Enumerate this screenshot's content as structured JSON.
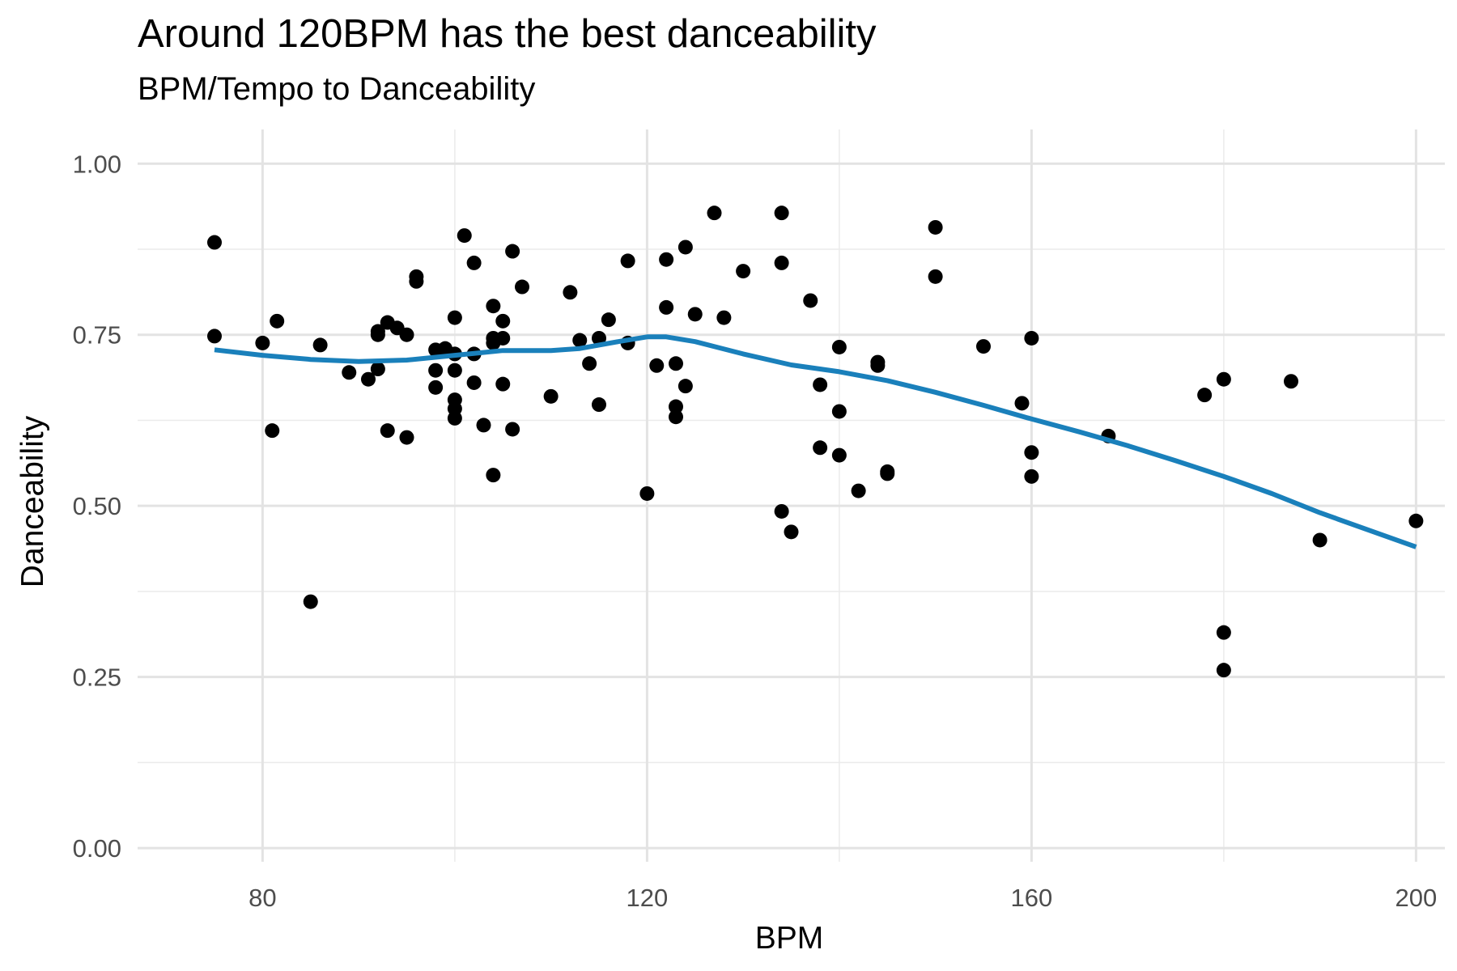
{
  "chart_data": {
    "type": "scatter",
    "title": "Around 120BPM has the best danceability",
    "subtitle": "BPM/Tempo to Danceability",
    "xlabel": "BPM",
    "ylabel": "Danceability",
    "xlim": [
      67,
      203
    ],
    "ylim": [
      -0.02,
      1.05
    ],
    "x_ticks": [
      80,
      120,
      160,
      200
    ],
    "x_tick_labels": [
      "80",
      "120",
      "160",
      "200"
    ],
    "y_ticks": [
      0,
      0.25,
      0.5,
      0.75,
      1.0
    ],
    "y_tick_labels": [
      "0.00",
      "0.25",
      "0.50",
      "0.75",
      "1.00"
    ],
    "grid": true,
    "point_color": "#000000",
    "trend_color": "#1a80bb",
    "points": [
      [
        75,
        0.885
      ],
      [
        75,
        0.748
      ],
      [
        80,
        0.738
      ],
      [
        81,
        0.61
      ],
      [
        81.5,
        0.77
      ],
      [
        85,
        0.36
      ],
      [
        86,
        0.735
      ],
      [
        89,
        0.695
      ],
      [
        91,
        0.685
      ],
      [
        92,
        0.7
      ],
      [
        92,
        0.75
      ],
      [
        92,
        0.755
      ],
      [
        93,
        0.61
      ],
      [
        93,
        0.768
      ],
      [
        94,
        0.76
      ],
      [
        95,
        0.75
      ],
      [
        95,
        0.6
      ],
      [
        96,
        0.835
      ],
      [
        96,
        0.828
      ],
      [
        98,
        0.728
      ],
      [
        98,
        0.698
      ],
      [
        98,
        0.673
      ],
      [
        99,
        0.73
      ],
      [
        100,
        0.722
      ],
      [
        100,
        0.698
      ],
      [
        100,
        0.655
      ],
      [
        100,
        0.642
      ],
      [
        100,
        0.628
      ],
      [
        100,
        0.775
      ],
      [
        101,
        0.895
      ],
      [
        102,
        0.855
      ],
      [
        102,
        0.722
      ],
      [
        102,
        0.68
      ],
      [
        103,
        0.618
      ],
      [
        104,
        0.545
      ],
      [
        104,
        0.792
      ],
      [
        104,
        0.745
      ],
      [
        104,
        0.738
      ],
      [
        105,
        0.77
      ],
      [
        105,
        0.745
      ],
      [
        105,
        0.678
      ],
      [
        106,
        0.872
      ],
      [
        106,
        0.612
      ],
      [
        107,
        0.82
      ],
      [
        110,
        0.66
      ],
      [
        112,
        0.812
      ],
      [
        113,
        0.742
      ],
      [
        114,
        0.708
      ],
      [
        115,
        0.745
      ],
      [
        115,
        0.648
      ],
      [
        116,
        0.772
      ],
      [
        118,
        0.858
      ],
      [
        118,
        0.738
      ],
      [
        120,
        0.518
      ],
      [
        121,
        0.705
      ],
      [
        122,
        0.86
      ],
      [
        122,
        0.79
      ],
      [
        123,
        0.708
      ],
      [
        123,
        0.645
      ],
      [
        123,
        0.63
      ],
      [
        124,
        0.878
      ],
      [
        124,
        0.675
      ],
      [
        125,
        0.78
      ],
      [
        127,
        0.928
      ],
      [
        128,
        0.775
      ],
      [
        130,
        0.843
      ],
      [
        134,
        0.928
      ],
      [
        134,
        0.855
      ],
      [
        134,
        0.492
      ],
      [
        135,
        0.462
      ],
      [
        137,
        0.8
      ],
      [
        138,
        0.677
      ],
      [
        138,
        0.585
      ],
      [
        140,
        0.732
      ],
      [
        140,
        0.638
      ],
      [
        140,
        0.574
      ],
      [
        142,
        0.522
      ],
      [
        144,
        0.71
      ],
      [
        144,
        0.705
      ],
      [
        145,
        0.55
      ],
      [
        145,
        0.547
      ],
      [
        150,
        0.907
      ],
      [
        150,
        0.835
      ],
      [
        155,
        0.733
      ],
      [
        159,
        0.65
      ],
      [
        160,
        0.745
      ],
      [
        160,
        0.578
      ],
      [
        160,
        0.543
      ],
      [
        168,
        0.602
      ],
      [
        178,
        0.662
      ],
      [
        180,
        0.685
      ],
      [
        180,
        0.315
      ],
      [
        180,
        0.26
      ],
      [
        187,
        0.682
      ],
      [
        190,
        0.45
      ],
      [
        200,
        0.478
      ]
    ],
    "trend_line": [
      [
        75,
        0.728
      ],
      [
        80,
        0.72
      ],
      [
        85,
        0.714
      ],
      [
        90,
        0.711
      ],
      [
        95,
        0.713
      ],
      [
        100,
        0.72
      ],
      [
        105,
        0.727
      ],
      [
        110,
        0.727
      ],
      [
        113,
        0.73
      ],
      [
        117,
        0.74
      ],
      [
        120,
        0.747
      ],
      [
        122,
        0.747
      ],
      [
        125,
        0.74
      ],
      [
        130,
        0.722
      ],
      [
        135,
        0.706
      ],
      [
        140,
        0.696
      ],
      [
        145,
        0.683
      ],
      [
        150,
        0.666
      ],
      [
        155,
        0.647
      ],
      [
        160,
        0.627
      ],
      [
        165,
        0.608
      ],
      [
        170,
        0.588
      ],
      [
        175,
        0.566
      ],
      [
        180,
        0.543
      ],
      [
        185,
        0.518
      ],
      [
        190,
        0.49
      ],
      [
        195,
        0.465
      ],
      [
        200,
        0.44
      ]
    ]
  }
}
